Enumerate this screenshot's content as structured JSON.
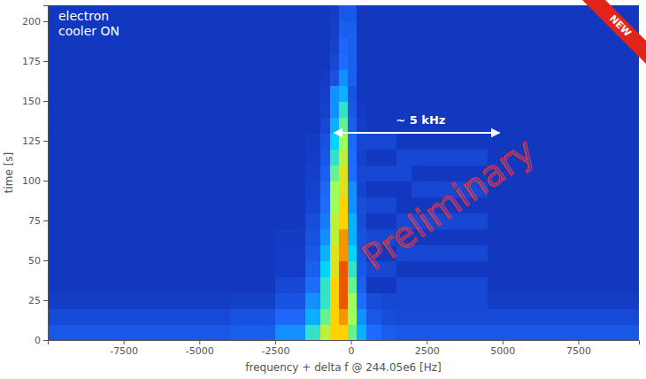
{
  "chart_data": {
    "type": "heatmap",
    "x_label": "frequency + delta f @ 244.05e6 [Hz]",
    "y_label": "time [s]",
    "xlim": [
      -10000,
      9500
    ],
    "ylim": [
      0,
      210
    ],
    "xticks": [
      -7500,
      -5000,
      -2500,
      0,
      2500,
      5000,
      7500
    ],
    "yticks": [
      0,
      25,
      50,
      75,
      100,
      125,
      150,
      175,
      200
    ],
    "x_edges": [
      -10000,
      -8000,
      -6000,
      -4000,
      -2500,
      -1500,
      -1000,
      -700,
      -400,
      -100,
      200,
      500,
      1000,
      1500,
      2000,
      2500,
      3000,
      3500,
      4000,
      4500,
      5000,
      6500,
      8000,
      9500
    ],
    "y_edges": [
      0,
      10,
      20,
      30,
      40,
      50,
      60,
      70,
      80,
      90,
      100,
      110,
      120,
      130,
      140,
      150,
      160,
      170,
      180,
      190,
      200,
      210
    ],
    "zlim": [
      0,
      10
    ],
    "z": [
      [
        3.2,
        3.2,
        3.2,
        3.4,
        4.5,
        6,
        7.5,
        8.5,
        8.5,
        6.5,
        5,
        4,
        3.4,
        3.2,
        3.2,
        3.2,
        3.2,
        3.2,
        3.2,
        3.2,
        3.2,
        3.2,
        3.2
      ],
      [
        2.7,
        2.7,
        2.7,
        3,
        3.8,
        5,
        6.5,
        8.5,
        9,
        7,
        4.5,
        3.2,
        2.8,
        2.7,
        2.7,
        2.7,
        2.7,
        2.7,
        2.7,
        2.7,
        2.7,
        2.7,
        2.7
      ],
      [
        2.2,
        2.2,
        2.2,
        2.3,
        3,
        4.5,
        6,
        8.5,
        9.5,
        7,
        4,
        2.8,
        2.6,
        2.6,
        2.6,
        2.6,
        2.6,
        2.6,
        2.6,
        2.2,
        2.2,
        2.2,
        2.2
      ],
      [
        2,
        2,
        2,
        2,
        2.6,
        4,
        6,
        8.5,
        9.5,
        6.5,
        3.5,
        2,
        2,
        2.6,
        2.6,
        2.6,
        2.6,
        2.6,
        2.6,
        2,
        2,
        2,
        2
      ],
      [
        2,
        2,
        2,
        2,
        2.2,
        3.5,
        5.5,
        8,
        9.5,
        6,
        3.2,
        2.6,
        2.6,
        2,
        2,
        2,
        2,
        2,
        2,
        2,
        2,
        2,
        2
      ],
      [
        2,
        2,
        2,
        2,
        2.2,
        3.2,
        5,
        8,
        9,
        5.5,
        3,
        2,
        2,
        2.6,
        2.6,
        2.6,
        2.6,
        2.6,
        2.6,
        2,
        2,
        2,
        2
      ],
      [
        2,
        2,
        2,
        2,
        2.1,
        3,
        4.5,
        7.5,
        9,
        5,
        3,
        2.6,
        2.6,
        2,
        2,
        2,
        2,
        2,
        2,
        2,
        2,
        2,
        2
      ],
      [
        2,
        2,
        2,
        2,
        2,
        2.8,
        4.2,
        7.5,
        8.5,
        5,
        2.8,
        2,
        2,
        2.6,
        2.6,
        2.6,
        2.6,
        2.6,
        2.6,
        2,
        2,
        2,
        2
      ],
      [
        2,
        2,
        2,
        2,
        2,
        2.5,
        4,
        7,
        8.5,
        4.5,
        2.8,
        2.6,
        2.6,
        2,
        2,
        2,
        2,
        2,
        2,
        2,
        2,
        2,
        2
      ],
      [
        2,
        2,
        2,
        2,
        2,
        2.4,
        3.8,
        7,
        8,
        4.5,
        2.5,
        2,
        2,
        2,
        2.6,
        2.6,
        2.6,
        2.6,
        2.6,
        2,
        2,
        2,
        2
      ],
      [
        2,
        2,
        2,
        2,
        2,
        2.3,
        3.5,
        6.5,
        8,
        4,
        2.6,
        2.6,
        2.6,
        2.6,
        2,
        2,
        2,
        2,
        2,
        2,
        2,
        2,
        2
      ],
      [
        2,
        2,
        2,
        2,
        2,
        2.2,
        3.2,
        6,
        7.5,
        4,
        2.4,
        2,
        2,
        2.6,
        2.6,
        2.6,
        2.6,
        2.6,
        2.6,
        2,
        2,
        2,
        2
      ],
      [
        2,
        2,
        2,
        2,
        2,
        2.1,
        3,
        5.5,
        7,
        3.8,
        2.6,
        2.6,
        2.6,
        2,
        2,
        2,
        2,
        2,
        2,
        2,
        2,
        2,
        2
      ],
      [
        2,
        2,
        2,
        2,
        2,
        2,
        2.6,
        5,
        6.5,
        3.5,
        2.2,
        2,
        2,
        2,
        2,
        2,
        2,
        2,
        2,
        2,
        2,
        2,
        2
      ],
      [
        2,
        2,
        2,
        2,
        2,
        2,
        2.4,
        4.5,
        6,
        3.2,
        2.1,
        2,
        2,
        2,
        2,
        2,
        2,
        2,
        2,
        2,
        2,
        2,
        2
      ],
      [
        2,
        2,
        2,
        2,
        2,
        2,
        2.3,
        4.5,
        5,
        3,
        2,
        2,
        2,
        2,
        2,
        2,
        2,
        2,
        2,
        2,
        2,
        2,
        2
      ],
      [
        2,
        2,
        2,
        2,
        2,
        2,
        2.1,
        3,
        4.5,
        3.5,
        2,
        2,
        2,
        2,
        2,
        2,
        2,
        2,
        2,
        2,
        2,
        2,
        2
      ],
      [
        2,
        2,
        2,
        2,
        2,
        2,
        2,
        2.6,
        4,
        3.5,
        2,
        2,
        2,
        2,
        2,
        2,
        2,
        2,
        2,
        2,
        2,
        2,
        2
      ],
      [
        2,
        2,
        2,
        2,
        2,
        2,
        2,
        2.4,
        3.8,
        3.5,
        2,
        2,
        2,
        2,
        2,
        2,
        2,
        2,
        2,
        2,
        2,
        2,
        2
      ],
      [
        2,
        2,
        2,
        2,
        2,
        2,
        2,
        2.3,
        3.5,
        3.5,
        2,
        2,
        2,
        2,
        2,
        2,
        2,
        2,
        2,
        2,
        2,
        2,
        2
      ],
      [
        2,
        2,
        2,
        2,
        2,
        2,
        2,
        2.2,
        3.2,
        3.2,
        2,
        2,
        2,
        2,
        2,
        2,
        2,
        2,
        2,
        2,
        2,
        2,
        2
      ]
    ],
    "annotations": [
      {
        "kind": "label",
        "lines": [
          "electron",
          "cooler ON"
        ]
      },
      {
        "kind": "arrow",
        "text": "~ 5 kHz",
        "x": [
          -300,
          4900
        ],
        "y": 130
      },
      {
        "kind": "watermark",
        "text": "Preliminary"
      },
      {
        "kind": "badge",
        "text": "NEW"
      }
    ]
  }
}
